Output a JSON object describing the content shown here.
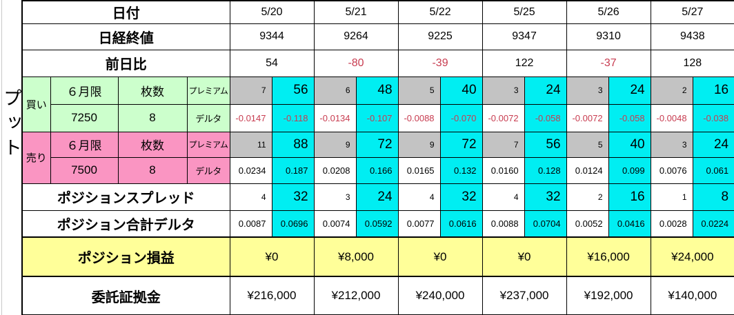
{
  "left_label": "プット",
  "colors": {
    "buy_bg": "#ccffcc",
    "sell_bg": "#fa95c2",
    "premium_cell_bg": "#c3c3c3",
    "highlight_cell_bg": "#00eef2",
    "pnl_bg": "#ffff99",
    "negative_text": "#c83c50"
  },
  "rows": {
    "dates": {
      "label": "日付",
      "values": [
        "5/20",
        "5/21",
        "5/22",
        "5/25",
        "5/26",
        "5/27"
      ]
    },
    "nikkei": {
      "label": "日経終値",
      "values": [
        "9344",
        "9264",
        "9225",
        "9347",
        "9310",
        "9438"
      ]
    },
    "change": {
      "label": "前日比",
      "values": [
        "54",
        "-80",
        "-39",
        "122",
        "-37",
        "128"
      ]
    }
  },
  "buy": {
    "side_label": "買い",
    "contract_label": "６月限",
    "lots_label": "枚数",
    "strike": "7250",
    "lots": "8",
    "premium_label": "プレミアム",
    "delta_label": "デルタ",
    "premium": [
      [
        "7",
        "56"
      ],
      [
        "6",
        "48"
      ],
      [
        "5",
        "40"
      ],
      [
        "3",
        "24"
      ],
      [
        "3",
        "24"
      ],
      [
        "2",
        "16"
      ]
    ],
    "delta": [
      [
        "-0.0147",
        "-0.118"
      ],
      [
        "-0.0134",
        "-0.107"
      ],
      [
        "-0.0088",
        "-0.070"
      ],
      [
        "-0.0072",
        "-0.058"
      ],
      [
        "-0.0072",
        "-0.058"
      ],
      [
        "-0.0048",
        "-0.038"
      ]
    ]
  },
  "sell": {
    "side_label": "売り",
    "contract_label": "６月限",
    "lots_label": "枚数",
    "strike": "7500",
    "lots": "8",
    "premium_label": "プレミアム",
    "delta_label": "デルタ",
    "premium": [
      [
        "11",
        "88"
      ],
      [
        "9",
        "72"
      ],
      [
        "9",
        "72"
      ],
      [
        "7",
        "56"
      ],
      [
        "5",
        "40"
      ],
      [
        "3",
        "24"
      ]
    ],
    "delta": [
      [
        "0.0234",
        "0.187"
      ],
      [
        "0.0208",
        "0.166"
      ],
      [
        "0.0165",
        "0.132"
      ],
      [
        "0.0160",
        "0.128"
      ],
      [
        "0.0124",
        "0.099"
      ],
      [
        "0.0076",
        "0.061"
      ]
    ]
  },
  "spread": {
    "label": "ポジションスプレッド",
    "values": [
      [
        "4",
        "32"
      ],
      [
        "3",
        "24"
      ],
      [
        "4",
        "32"
      ],
      [
        "4",
        "32"
      ],
      [
        "2",
        "16"
      ],
      [
        "1",
        "8"
      ]
    ]
  },
  "total_delta": {
    "label": "ポジション合計デルタ",
    "values": [
      [
        "0.0087",
        "0.0696"
      ],
      [
        "0.0074",
        "0.0592"
      ],
      [
        "0.0077",
        "0.0616"
      ],
      [
        "0.0088",
        "0.0704"
      ],
      [
        "0.0052",
        "0.0416"
      ],
      [
        "0.0028",
        "0.0224"
      ]
    ]
  },
  "pnl": {
    "label": "ポジション損益",
    "values": [
      "¥0",
      "¥8,000",
      "¥0",
      "¥0",
      "¥16,000",
      "¥24,000"
    ]
  },
  "margin": {
    "label": "委託証拠金",
    "values": [
      "¥216,000",
      "¥212,000",
      "¥240,000",
      "¥237,000",
      "¥192,000",
      "¥140,000"
    ]
  }
}
